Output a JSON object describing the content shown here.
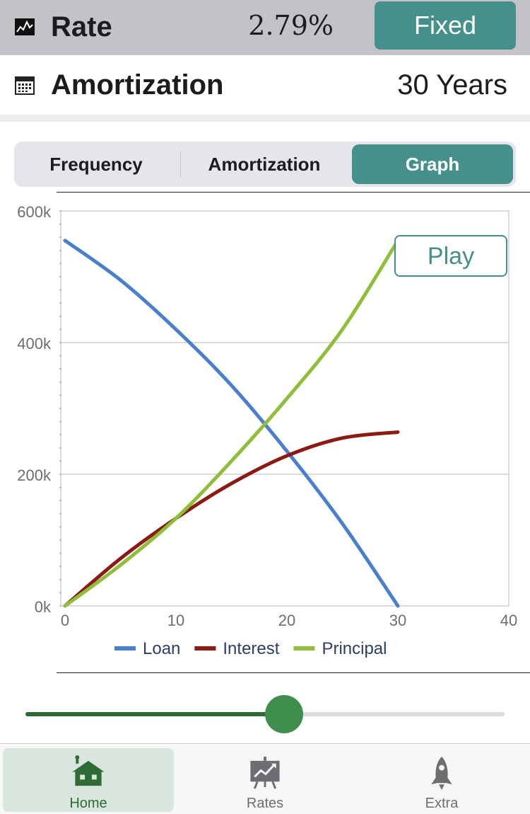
{
  "rate_row": {
    "icon": "line-chart-icon",
    "label": "Rate",
    "value": "2.79%",
    "type_button": "Fixed"
  },
  "amortization_row": {
    "icon": "calendar-icon",
    "label": "Amortization",
    "value": "30 Years"
  },
  "segmented": {
    "items": [
      "Frequency",
      "Amortization",
      "Graph"
    ],
    "selected": "Graph"
  },
  "play_button": "Play",
  "chart_data": {
    "type": "line",
    "x": [
      0,
      5,
      10,
      15,
      20,
      25,
      30
    ],
    "series": [
      {
        "name": "Loan",
        "color": "#4a7fcc",
        "values": [
          555000,
          495000,
          420000,
          335000,
          235000,
          125000,
          0
        ]
      },
      {
        "name": "Interest",
        "color": "#8b1a14",
        "values": [
          0,
          72000,
          133000,
          186000,
          228000,
          255000,
          264000
        ]
      },
      {
        "name": "Principal",
        "color": "#8fbf3a",
        "values": [
          0,
          62000,
          133000,
          220000,
          315000,
          420000,
          555000
        ]
      }
    ],
    "xlim": [
      0,
      40
    ],
    "ylim": [
      0,
      600000
    ],
    "x_ticks": [
      "0",
      "10",
      "20",
      "30",
      "40"
    ],
    "y_ticks": [
      "0k",
      "200k",
      "400k",
      "600k"
    ],
    "grid": true,
    "legend": "bottom"
  },
  "slider": {
    "value_fraction": 0.54,
    "track_color": "#2f6b36"
  },
  "tabbar": {
    "items": [
      {
        "label": "Home",
        "icon": "house-icon",
        "active": true
      },
      {
        "label": "Rates",
        "icon": "presentation-chart-icon",
        "active": false
      },
      {
        "label": "Extra",
        "icon": "rocket-icon",
        "active": false
      }
    ]
  }
}
